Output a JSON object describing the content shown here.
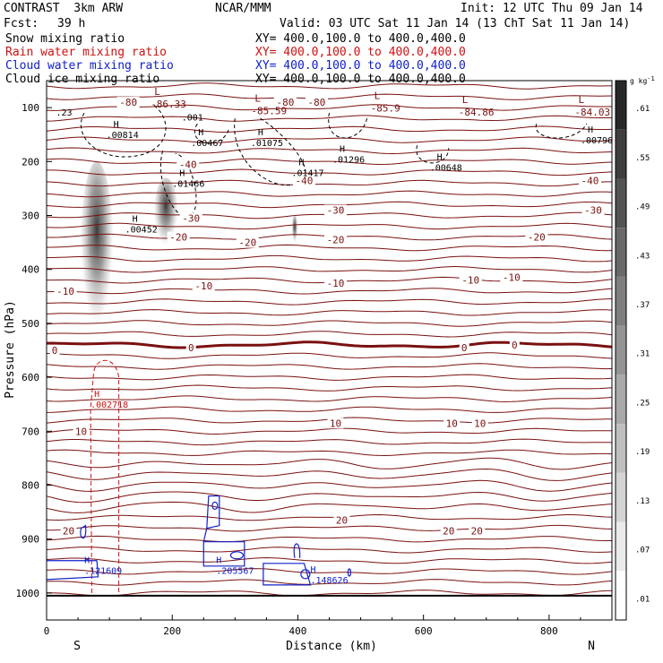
{
  "header": {
    "model": "CONTRAST  3km ARW",
    "org": "NCAR/MMM",
    "init": "Init: 12 UTC Thu 09 Jan 14",
    "fcst_label": "Fcst:",
    "fcst_value": "39 h",
    "valid": "Valid: 03 UTC Sat 11 Jan 14 (13 ChT Sat 11 Jan 14)"
  },
  "fields": [
    {
      "name": "Snow mixing ratio",
      "xy": "XY= 400.0,100.0 to 400.0,400.0",
      "color": "#000000"
    },
    {
      "name": "Rain water mixing ratio",
      "xy": "XY= 400.0,100.0 to 400.0,400.0",
      "color": "#d01010"
    },
    {
      "name": "Cloud water mixing ratio",
      "xy": "XY= 400.0,100.0 to 400.0,400.0",
      "color": "#1020c8"
    },
    {
      "name": "Cloud ice mixing ratio",
      "xy": "XY= 400.0,100.0 to 400.0,400.0",
      "color": "#000000"
    }
  ],
  "chart_data": {
    "type": "heatmap",
    "xlabel": "Distance (km)",
    "ylabel": "Pressure (hPa)",
    "xlim": [
      0,
      900
    ],
    "ylim": [
      1050,
      50
    ],
    "xticks": [
      0,
      200,
      400,
      600,
      800
    ],
    "yticks": [
      100,
      200,
      300,
      400,
      500,
      600,
      700,
      800,
      900,
      1000
    ],
    "endpoints": {
      "left": "S",
      "right": "N"
    },
    "colorbar": {
      "unit": "g kg",
      "unit_exp": "-1",
      "levels": [
        ".61",
        ".55",
        ".49",
        ".43",
        ".37",
        ".31",
        ".25",
        ".19",
        ".13",
        ".07",
        ".01"
      ]
    },
    "snow_plumes": [
      {
        "x": 80,
        "p_top": 200,
        "p_bottom": 560,
        "width_km": 55
      },
      {
        "x": 190,
        "p_top": 230,
        "p_bottom": 380,
        "width_km": 40
      },
      {
        "x": 395,
        "p_top": 300,
        "p_bottom": 360,
        "width_km": 10
      }
    ],
    "temperature_labels": [
      {
        "x": 130,
        "p": 90,
        "text": "-80"
      },
      {
        "x": 430,
        "p": 90,
        "text": "-80"
      },
      {
        "x": 380,
        "p": 90,
        "text": "-80"
      },
      {
        "x": 230,
        "p": 305,
        "text": "-30"
      },
      {
        "x": 460,
        "p": 290,
        "text": "-30"
      },
      {
        "x": 870,
        "p": 290,
        "text": "-30"
      },
      {
        "x": 410,
        "p": 235,
        "text": "-40"
      },
      {
        "x": 865,
        "p": 235,
        "text": "-40"
      },
      {
        "x": 225,
        "p": 205,
        "text": "-40"
      },
      {
        "x": 210,
        "p": 340,
        "text": "-20"
      },
      {
        "x": 320,
        "p": 350,
        "text": "-20"
      },
      {
        "x": 460,
        "p": 345,
        "text": "-20"
      },
      {
        "x": 780,
        "p": 340,
        "text": "-20"
      },
      {
        "x": 30,
        "p": 440,
        "text": "-10"
      },
      {
        "x": 250,
        "p": 430,
        "text": "-10"
      },
      {
        "x": 460,
        "p": 425,
        "text": "-10"
      },
      {
        "x": 675,
        "p": 420,
        "text": "-10"
      },
      {
        "x": 740,
        "p": 415,
        "text": "-10"
      },
      {
        "x": 13,
        "p": 550,
        "text": "0"
      },
      {
        "x": 230,
        "p": 545,
        "text": "0"
      },
      {
        "x": 665,
        "p": 545,
        "text": "0"
      },
      {
        "x": 745,
        "p": 540,
        "text": "0"
      },
      {
        "x": 55,
        "p": 700,
        "text": "10"
      },
      {
        "x": 460,
        "p": 685,
        "text": "10"
      },
      {
        "x": 645,
        "p": 685,
        "text": "10"
      },
      {
        "x": 690,
        "p": 685,
        "text": "10"
      },
      {
        "x": 35,
        "p": 885,
        "text": "20"
      },
      {
        "x": 470,
        "p": 865,
        "text": "20"
      },
      {
        "x": 640,
        "p": 885,
        "text": "20"
      },
      {
        "x": 685,
        "p": 885,
        "text": "20"
      }
    ],
    "low_labels": [
      {
        "x": 180,
        "p": 80,
        "label": "L",
        "value": "-86.33"
      },
      {
        "x": 340,
        "p": 92,
        "label": "L",
        "value": "-85.59"
      },
      {
        "x": 530,
        "p": 87,
        "label": "L",
        "value": "-85.9"
      },
      {
        "x": 670,
        "p": 95,
        "label": "L",
        "value": "-84.86"
      },
      {
        "x": 855,
        "p": 95,
        "label": "L",
        "value": "-84.03"
      }
    ],
    "ice_maxima": [
      {
        "x": 95,
        "p": 140,
        "label": "H",
        "value": ".00814"
      },
      {
        "x": 230,
        "p": 155,
        "label": "H",
        "value": ".00467"
      },
      {
        "x": 325,
        "p": 155,
        "label": "H",
        "value": ".01075"
      },
      {
        "x": 455,
        "p": 185,
        "label": "H",
        "value": ".01296"
      },
      {
        "x": 390,
        "p": 210,
        "label": "H",
        "value": ".01417"
      },
      {
        "x": 610,
        "p": 200,
        "label": "H",
        "value": ".00648"
      },
      {
        "x": 200,
        "p": 230,
        "label": "H",
        "value": ".01466"
      },
      {
        "x": 850,
        "p": 150,
        "label": "H",
        "value": ".00796"
      },
      {
        "x": 125,
        "p": 315,
        "label": "H",
        "value": ".00452"
      },
      {
        "x": 215,
        "p": 107,
        "label": "",
        "value": ".001"
      },
      {
        "x": 15,
        "p": 98,
        "label": "",
        "value": ".23"
      }
    ],
    "rain_maxima": [
      {
        "x": 70,
        "p": 660,
        "label": "H",
        "value": ".002718"
      }
    ],
    "cloud_water_maxima": [
      {
        "x": 60,
        "p": 968,
        "label": "H",
        "value": ".121609"
      },
      {
        "x": 270,
        "p": 968,
        "label": "H",
        "value": ".205567"
      },
      {
        "x": 420,
        "p": 985,
        "label": "H",
        "value": ".148626"
      }
    ]
  }
}
